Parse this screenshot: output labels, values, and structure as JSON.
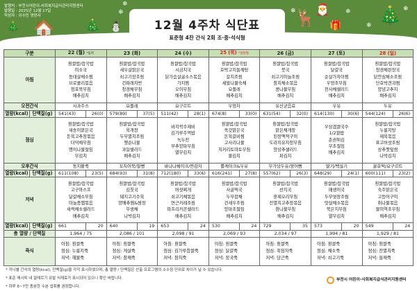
{
  "header": {
    "publisher": "발행처 : 부천시어린이-사회복지급식관리지원센터",
    "date": "발행일 : 2025년 12월 17일",
    "author": "작성자 : 이수민 영양사",
    "title": "12월 4주차 식단표",
    "subtitle": "표준형 4찬 간식 2회 조·중·석식형"
  },
  "table": {
    "category_label": "구분",
    "breakfast_label": "아침",
    "am_snack_label": "오전간식",
    "kcal_label": "열량(kcal)",
    "protein_label": "단백질(g)",
    "lunch_label": "점심",
    "pm_snack_label": "오후간식",
    "dinner_label": "저녁",
    "total_label": "총 열량 / 단백질",
    "porridge_label": "죽식"
  },
  "colors": {
    "header_bg": "#c6e0b4",
    "label_bg": "#e2efda",
    "holiday_red": "#e02020",
    "banner_green": "#5b8c3b"
  },
  "days": [
    {
      "date": "22 (월)",
      "note": "*동지",
      "red": false,
      "breakfast": [
        "흰쌀밥/잡곡밥",
        "미소국",
        "동태살채소찜",
        "브로콜리볶음",
        "청포묵무침",
        "배추김치"
      ],
      "am_snack": "사과주스",
      "am_kcal": "541(43)",
      "am_protein": "26(0)",
      "lunch": [
        "흰쌀밥/잡곡밥",
        "새송이맑은국",
        "돈육고추장볶음",
        "더덕채무침",
        "명이나물절임",
        "무김치"
      ],
      "pm_snack": "동지팥죽",
      "pm_kcal": "611(108)",
      "pm_protein": "23(5)",
      "dinner": [
        "흰쌀밥/잡곡밥",
        "고구마스프",
        "달걀채소부침",
        "마늘종햄볶음",
        "새싹채소샐러드",
        "배추김치"
      ],
      "dinner_kcal": "661",
      "dinner_protein": "20",
      "total": "1,964  /  75",
      "porridge": [
        "아침: 흰쌀죽",
        "점심: 누룽지죽",
        "저녁: 해물죽"
      ]
    },
    {
      "date": "23 (화)",
      "note": "",
      "red": false,
      "breakfast": [
        "흰쌀밥/잡곡밥",
        "새우살맑은국",
        "쇠고기장조림",
        "건파래자반",
        "청경채무침",
        "배추김치"
      ],
      "am_snack": "요플레",
      "am_kcal": "579(89)",
      "am_protein": "37(5)",
      "lunch": [
        "흰쌀밥/잡곡밥",
        "육개장",
        "두부멸치조림",
        "햇순나물",
        "과일샐러드",
        "배추김치"
      ],
      "pm_snack": "꼬치어묵/찰빵",
      "pm_kcal": "684(93)",
      "pm_protein": "31(8)",
      "dinner": [
        "흰쌀밥/잡곡밥",
        "김칫국",
        "돼지고기수육",
        "양배추찜&쌈장",
        "무생채",
        "나박김치"
      ],
      "dinner_kcal": "640",
      "dinner_protein": "19",
      "total": "2,086  /  101",
      "porridge": [
        "아침: 흰쌀죽",
        "점심: 게살죽",
        "저녁: 참깨죽"
      ]
    },
    {
      "date": "24 (수)",
      "note": "",
      "red": false,
      "breakfast": [
        "흰쌀밥/잡곡밥",
        "시금치국",
        "닭가슴살굴소스볶음",
        "가지찜",
        "오이무침",
        "배추김치"
      ],
      "am_snack": "요구르트",
      "am_kcal": "511(42)",
      "am_protein": "28(1)",
      "lunch": [
        "바지락수제비",
        "김가루주먹밥",
        "녹두전",
        "부추양파무침",
        "열무김치"
      ],
      "pm_snack": "바나나쉐이크/찐감자",
      "pm_kcal": "712(180)",
      "pm_protein": "33(6)",
      "dinner": [
        "흰쌀밥/잡곡밥",
        "버섯찌개",
        "쇠고기채볶음",
        "연근카레조림",
        "파프리카콘샐러드",
        "배추김치"
      ],
      "dinner_kcal": "653",
      "dinner_protein": "24",
      "total": "2,098  /  91",
      "porridge": [
        "아침: 흰쌀죽",
        "점심: 김가루찹쌀죽",
        "저녁: 참치죽"
      ]
    },
    {
      "date": "25 (목)",
      "note": "*성탄절",
      "red": true,
      "breakfast": [
        "흰쌀밥/잡곡밥",
        "호박고지들깨탕",
        "갈치조림",
        "세발나물숙채",
        "요플레",
        "배추김치"
      ],
      "am_snack": "우엉차",
      "am_kcal": "674(8)",
      "am_protein": "33(0)",
      "lunch": [
        "흰쌀밥/잡곡밥",
        "쑥갓맑은국",
        "돈육갈비찜",
        "고사리나물",
        "치커리토마토무침",
        "물김치"
      ],
      "pm_snack": "롤케이크&우유",
      "pm_kcal": "616(241)",
      "pm_protein": "27(8)",
      "dinner": [
        "흰쌀밥/잡곡밥",
        "사골떡국",
        "두부잡채",
        "건새우조림",
        "양파초절임",
        "배추김치"
      ],
      "dinner_kcal": "530",
      "dinner_protein": "24",
      "total": "2,069  /  93",
      "porridge": [
        "아침: 흰쌀죽",
        "점심: 달걀죽",
        "저녁: 장국죽"
      ]
    },
    {
      "date": "26 (금)",
      "note": "",
      "red": false,
      "breakfast": [
        "흰쌀밥/잡곡밥",
        "뭇국",
        "쇠고기마늘조림",
        "참치채소볶음",
        "콩나물무침",
        "배추김치"
      ],
      "am_snack": "유산균음료",
      "am_kcal": "631(54)",
      "am_protein": "32(0)",
      "lunch": [
        "흰쌀밥/잡곡밥",
        "맑은채개장",
        "된장맥적구이",
        "도라지유자청무침",
        "양상추샐러드",
        "파김치"
      ],
      "pm_snack": "무가당두유/붕어빵",
      "pm_kcal": "557(62)",
      "pm_protein": "26(3)",
      "dinner": [
        "흰쌀밥/잡곡밥",
        "선지국",
        "훈제오리무침",
        "잔멸치고추장볶음",
        "참나물무침",
        "배추김치"
      ],
      "dinner_kcal": "729",
      "dinner_protein": "35",
      "total": "2,034  /  97",
      "porridge": [
        "아침: 흰쌀죽",
        "점심: 흑임자죽",
        "저녁: 당근죽"
      ]
    },
    {
      "date": "27 (토)",
      "note": "",
      "red": false,
      "breakfast": [
        "흰쌀밥/잡곡밥",
        "달걀국",
        "순살가자미찜",
        "우엉조무침",
        "천사채샐러드",
        "배추김치"
      ],
      "am_snack": "우유",
      "am_kcal": "614(130)",
      "am_protein": "30(6)",
      "lunch": [
        "우삼겹쌀국수",
        "1/2쌀밥",
        "춘권튀김",
        "무초절임",
        "배추김치"
      ],
      "pm_snack": "딸기/백설기",
      "pm_kcal": "648(29)",
      "pm_protein": "24(1)",
      "dinner": [
        "흰쌀밥/잡곡밥",
        "매생이국",
        "두부엿장조림",
        "맛살채소볶음",
        "묵은지무침",
        "열무김치"
      ],
      "dinner_kcal": "573",
      "dinner_protein": "20",
      "total": "1,994  /  81",
      "porridge": [
        "아침: 흰쌀죽",
        "점심: 채소죽",
        "저녁: 쇠고기죽"
      ]
    },
    {
      "date": "28 (일)",
      "note": "",
      "red": true,
      "breakfast": [
        "흰쌀밥/잡곡밥",
        "청경채된장국",
        "닭안심채소조림",
        "단호박견과찜",
        "양념고추지",
        "배추김치"
      ],
      "am_snack": "두유",
      "am_kcal": "544(124)",
      "am_protein": "26(6)",
      "lunch": [
        "흰쌀밥/잡곡밥",
        "누룽지탕",
        "제육볶음",
        "표고버섯조림",
        "상추깻잎쌈",
        "나박김치"
      ],
      "pm_snack": "꿀호떡/요구르트",
      "pm_kcal": "600(111)",
      "pm_protein": "23(2)",
      "dinner": [
        "흰쌀밥/잡곡밥",
        "숙주맑은국",
        "고등어구이",
        "취나물볶음",
        "물미역초무침",
        "배추김치"
      ],
      "dinner_kcal": "549",
      "dinner_protein": "24",
      "total": "1,929  /  81",
      "porridge": [
        "아침: 흰쌀죽",
        "점심: 잔멸치죽",
        "저녁: 들깨죽"
      ]
    }
  ],
  "notes": [
    "* 끼니별 간식의 열량(kcal), 단백질(g)을 각각 표시하였으며, 총 열량 / 단백질은 산출 프로그램의 소수점 단위로 차이가 날 수 있습니다.",
    "* 표준 레시피 내 알레르기 유발 식재료가 표시되어 있으니 확인 바랍니다.",
    "* 하루 6~7잔 충분한 수분 섭취를 권장합니다."
  ],
  "footer_logo": "부천시 어린이-사회복지급식관리지원센터"
}
